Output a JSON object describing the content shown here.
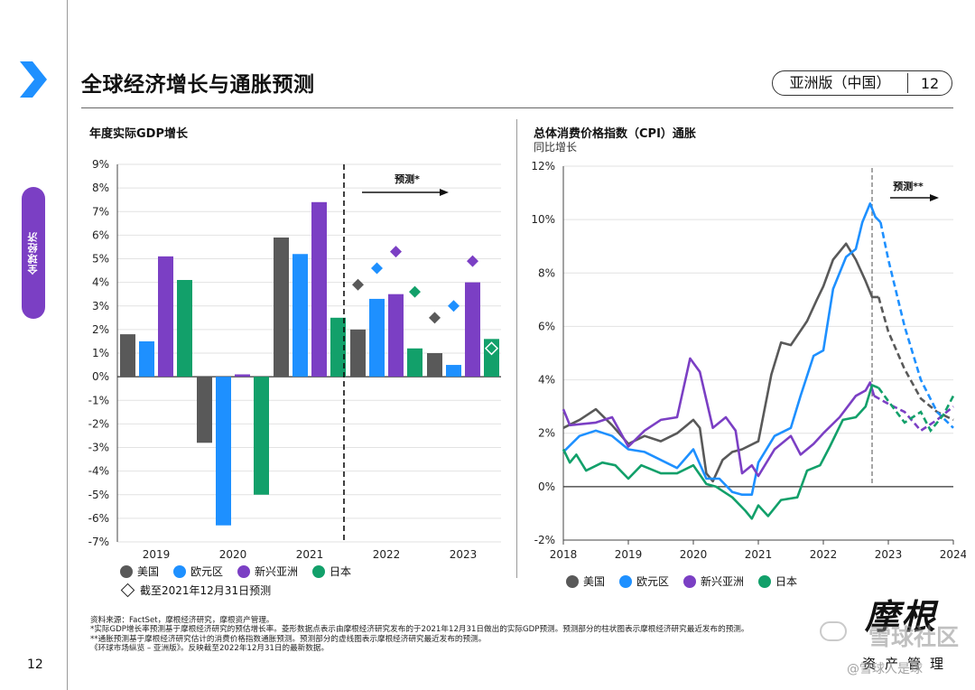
{
  "sidebar": {
    "label": "全球经济"
  },
  "page": {
    "number": "12",
    "title": "全球经济增长与通胀预测",
    "edition": "亚洲版（中国）",
    "edition_number": "12"
  },
  "colors": {
    "us": "#595959",
    "euro": "#1e90ff",
    "em_asia": "#7b3fc4",
    "japan": "#12a06a",
    "brand": "#7b3fc4",
    "arrow": "#1e90ff"
  },
  "chart_data": [
    {
      "id": "gdp",
      "type": "bar",
      "title": "年度实际GDP增长",
      "categories": [
        "2019",
        "2020",
        "2021",
        "2022",
        "2023"
      ],
      "series": [
        {
          "name": "美国",
          "values": [
            1.8,
            -2.8,
            5.9,
            2.0,
            1.0
          ]
        },
        {
          "name": "欧元区",
          "values": [
            1.5,
            -6.3,
            5.2,
            3.3,
            0.5
          ]
        },
        {
          "name": "新兴亚洲",
          "values": [
            5.1,
            0.1,
            7.4,
            3.5,
            4.0
          ]
        },
        {
          "name": "日本",
          "values": [
            4.1,
            -5.0,
            2.5,
            1.2,
            1.6
          ]
        }
      ],
      "forecast_diamonds": [
        {
          "series": "美国",
          "category": "2022",
          "value": 3.9
        },
        {
          "series": "欧元区",
          "category": "2022",
          "value": 4.6
        },
        {
          "series": "新兴亚洲",
          "category": "2022",
          "value": 5.3
        },
        {
          "series": "日本",
          "category": "2022",
          "value": 3.6
        },
        {
          "series": "美国",
          "category": "2023",
          "value": 2.5
        },
        {
          "series": "欧元区",
          "category": "2023",
          "value": 3.0
        },
        {
          "series": "新兴亚洲",
          "category": "2023",
          "value": 4.9
        },
        {
          "series": "日本",
          "category": "2023",
          "value": 1.2
        }
      ],
      "ylim": [
        -7,
        9
      ],
      "yticks": [
        "9%",
        "8%",
        "7%",
        "6%",
        "5%",
        "4%",
        "3%",
        "2%",
        "1%",
        "0%",
        "-1%",
        "-2%",
        "-3%",
        "-4%",
        "-5%",
        "-6%",
        "-7%"
      ],
      "forecast_label": "预测*",
      "legend": [
        "美国",
        "欧元区",
        "新兴亚洲",
        "日本"
      ],
      "diamond_legend": "截至2021年12月31日预测"
    },
    {
      "id": "cpi",
      "type": "line",
      "title": "总体消费价格指数（CPI）通胀",
      "subtitle": "同比增长",
      "xticks": [
        "2018",
        "2019",
        "2020",
        "2021",
        "2022",
        "2023",
        "2024"
      ],
      "yticks": [
        "12%",
        "10%",
        "8%",
        "6%",
        "4%",
        "2%",
        "0%",
        "-2%"
      ],
      "ylim": [
        -2,
        12
      ],
      "xlim": [
        2018,
        2024
      ],
      "forecast_start": 2022.75,
      "forecast_label": "预测**",
      "series": [
        {
          "name": "美国",
          "actual": [
            [
              2018.0,
              2.2
            ],
            [
              2018.25,
              2.5
            ],
            [
              2018.5,
              2.9
            ],
            [
              2018.75,
              2.3
            ],
            [
              2019.0,
              1.6
            ],
            [
              2019.25,
              1.9
            ],
            [
              2019.5,
              1.7
            ],
            [
              2019.75,
              2.0
            ],
            [
              2020.0,
              2.5
            ],
            [
              2020.1,
              2.2
            ],
            [
              2020.2,
              0.5
            ],
            [
              2020.3,
              0.2
            ],
            [
              2020.45,
              1.0
            ],
            [
              2020.6,
              1.3
            ],
            [
              2020.75,
              1.4
            ],
            [
              2021.0,
              1.7
            ],
            [
              2021.2,
              4.2
            ],
            [
              2021.35,
              5.4
            ],
            [
              2021.5,
              5.3
            ],
            [
              2021.75,
              6.2
            ],
            [
              2021.9,
              7.0
            ],
            [
              2022.0,
              7.5
            ],
            [
              2022.15,
              8.5
            ],
            [
              2022.35,
              9.1
            ],
            [
              2022.5,
              8.5
            ],
            [
              2022.65,
              7.7
            ],
            [
              2022.75,
              7.1
            ],
            [
              2022.85,
              7.1
            ]
          ],
          "forecast": [
            [
              2022.85,
              7.1
            ],
            [
              2023.0,
              5.8
            ],
            [
              2023.25,
              4.4
            ],
            [
              2023.5,
              3.3
            ],
            [
              2023.75,
              2.8
            ],
            [
              2024.0,
              2.5
            ]
          ]
        },
        {
          "name": "欧元区",
          "actual": [
            [
              2018.0,
              1.3
            ],
            [
              2018.25,
              1.9
            ],
            [
              2018.5,
              2.1
            ],
            [
              2018.75,
              1.9
            ],
            [
              2019.0,
              1.4
            ],
            [
              2019.25,
              1.3
            ],
            [
              2019.5,
              1.0
            ],
            [
              2019.75,
              0.7
            ],
            [
              2020.0,
              1.4
            ],
            [
              2020.2,
              0.3
            ],
            [
              2020.4,
              0.3
            ],
            [
              2020.6,
              -0.2
            ],
            [
              2020.75,
              -0.3
            ],
            [
              2020.9,
              -0.3
            ],
            [
              2021.0,
              0.9
            ],
            [
              2021.25,
              1.9
            ],
            [
              2021.5,
              2.2
            ],
            [
              2021.65,
              3.4
            ],
            [
              2021.85,
              4.9
            ],
            [
              2022.0,
              5.1
            ],
            [
              2022.15,
              7.4
            ],
            [
              2022.35,
              8.6
            ],
            [
              2022.5,
              8.9
            ],
            [
              2022.6,
              9.9
            ],
            [
              2022.72,
              10.6
            ],
            [
              2022.8,
              10.1
            ],
            [
              2022.88,
              9.9
            ]
          ],
          "forecast": [
            [
              2022.88,
              9.9
            ],
            [
              2023.0,
              8.5
            ],
            [
              2023.25,
              6.0
            ],
            [
              2023.5,
              4.0
            ],
            [
              2023.75,
              2.8
            ],
            [
              2024.0,
              2.2
            ]
          ]
        },
        {
          "name": "新兴亚洲",
          "actual": [
            [
              2018.0,
              2.9
            ],
            [
              2018.1,
              2.3
            ],
            [
              2018.5,
              2.4
            ],
            [
              2018.75,
              2.6
            ],
            [
              2019.0,
              1.5
            ],
            [
              2019.25,
              2.1
            ],
            [
              2019.5,
              2.5
            ],
            [
              2019.75,
              2.6
            ],
            [
              2019.95,
              4.8
            ],
            [
              2020.1,
              4.3
            ],
            [
              2020.3,
              2.2
            ],
            [
              2020.5,
              2.6
            ],
            [
              2020.65,
              2.1
            ],
            [
              2020.75,
              0.5
            ],
            [
              2020.9,
              0.8
            ],
            [
              2021.0,
              0.4
            ],
            [
              2021.25,
              1.4
            ],
            [
              2021.5,
              1.9
            ],
            [
              2021.65,
              1.2
            ],
            [
              2021.85,
              1.6
            ],
            [
              2022.0,
              2.0
            ],
            [
              2022.25,
              2.6
            ],
            [
              2022.5,
              3.4
            ],
            [
              2022.65,
              3.6
            ],
            [
              2022.72,
              3.9
            ],
            [
              2022.78,
              3.4
            ]
          ],
          "forecast": [
            [
              2022.78,
              3.4
            ],
            [
              2023.0,
              3.1
            ],
            [
              2023.25,
              2.8
            ],
            [
              2023.5,
              2.1
            ],
            [
              2023.75,
              2.5
            ],
            [
              2024.0,
              3.0
            ]
          ]
        },
        {
          "name": "日本",
          "actual": [
            [
              2018.0,
              1.4
            ],
            [
              2018.1,
              0.9
            ],
            [
              2018.2,
              1.2
            ],
            [
              2018.35,
              0.6
            ],
            [
              2018.6,
              0.9
            ],
            [
              2018.8,
              0.8
            ],
            [
              2019.0,
              0.3
            ],
            [
              2019.2,
              0.8
            ],
            [
              2019.5,
              0.5
            ],
            [
              2019.75,
              0.5
            ],
            [
              2020.0,
              0.8
            ],
            [
              2020.2,
              0.1
            ],
            [
              2020.35,
              0.0
            ],
            [
              2020.6,
              -0.4
            ],
            [
              2020.8,
              -0.9
            ],
            [
              2020.9,
              -1.2
            ],
            [
              2021.0,
              -0.7
            ],
            [
              2021.15,
              -1.1
            ],
            [
              2021.35,
              -0.5
            ],
            [
              2021.6,
              -0.4
            ],
            [
              2021.75,
              0.6
            ],
            [
              2021.95,
              0.8
            ],
            [
              2022.1,
              1.5
            ],
            [
              2022.3,
              2.5
            ],
            [
              2022.5,
              2.6
            ],
            [
              2022.65,
              3.0
            ],
            [
              2022.75,
              3.8
            ],
            [
              2022.85,
              3.7
            ]
          ],
          "forecast": [
            [
              2022.85,
              3.7
            ],
            [
              2023.0,
              3.2
            ],
            [
              2023.25,
              2.4
            ],
            [
              2023.5,
              2.8
            ],
            [
              2023.65,
              2.1
            ],
            [
              2023.85,
              2.7
            ],
            [
              2024.0,
              3.4
            ]
          ]
        }
      ],
      "legend": [
        "美国",
        "欧元区",
        "新兴亚洲",
        "日本"
      ]
    }
  ],
  "footnotes": [
    "资料来源：FactSet，摩根经济研究，摩根资产管理。",
    "*实际GDP增长率预测基于摩根经济研究的预估增长率。菱形数据点表示由摩根经济研究发布的于2021年12月31日做出的实际GDP预测。预测部分的柱状图表示摩根经济研究最近发布的预测。",
    "**通胀预测基于摩根经济研究估计的消费价格指数通胀预测。预测部分的虚线图表示摩根经济研究最近发布的预测。",
    "《环球市场纵览 – 亚洲版》。反映截至2022年12月31日的最新数据。"
  ],
  "logo": {
    "main": "摩根",
    "sub": "资产管理"
  },
  "watermark": {
    "main": "雪球社区",
    "sub": "@雪球人是球"
  }
}
